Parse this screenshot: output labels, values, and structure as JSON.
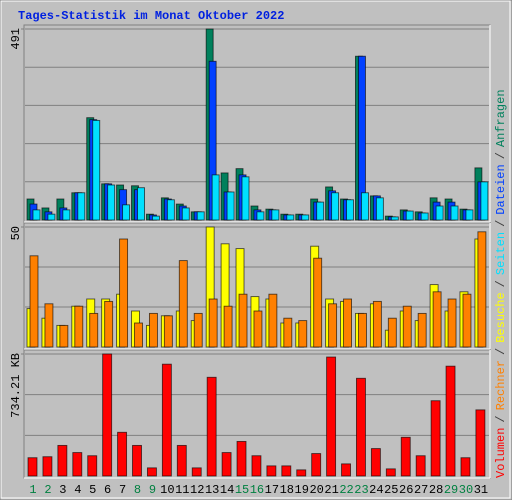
{
  "title": "Tages-Statistik im Monat Oktober 2022",
  "legend_separator": "/",
  "chart_data": [
    {
      "type": "bar",
      "ylim": [
        0,
        491
      ],
      "yticks": [
        491
      ],
      "series": [
        {
          "name": "Anfragen",
          "color": "#00805c",
          "values": [
            54,
            31,
            54,
            70,
            263,
            93,
            90,
            88,
            15,
            57,
            41,
            21,
            491,
            121,
            132,
            36,
            28,
            15,
            15,
            54,
            85,
            54,
            421,
            62,
            10,
            26,
            21,
            57,
            54,
            28,
            134
          ]
        },
        {
          "name": "Dateien",
          "color": "#0040ff",
          "values": [
            41,
            21,
            31,
            70,
            258,
            93,
            78,
            78,
            13,
            54,
            36,
            21,
            408,
            72,
            116,
            26,
            26,
            13,
            13,
            46,
            75,
            52,
            421,
            62,
            8,
            23,
            18,
            46,
            46,
            26,
            98
          ]
        },
        {
          "name": "Seiten",
          "color": "#00e0ff",
          "values": [
            26,
            15,
            26,
            70,
            256,
            90,
            39,
            83,
            10,
            52,
            31,
            21,
            116,
            72,
            111,
            21,
            26,
            13,
            13,
            46,
            70,
            52,
            70,
            57,
            8,
            23,
            18,
            36,
            36,
            26,
            98
          ]
        }
      ]
    },
    {
      "type": "bar",
      "ylim": [
        0,
        50
      ],
      "yticks": [
        50
      ],
      "series": [
        {
          "name": "Besuche",
          "color": "#ffff00",
          "values": [
            16,
            12,
            9,
            17,
            20,
            20,
            22,
            15,
            9,
            13,
            15,
            11,
            50,
            43,
            41,
            21,
            20,
            10,
            10,
            42,
            20,
            19,
            14,
            18,
            7,
            15,
            11,
            26,
            15,
            23,
            45
          ]
        },
        {
          "name": "Rechner",
          "color": "#ff8000",
          "values": [
            38,
            18,
            9,
            17,
            14,
            19,
            45,
            10,
            14,
            13,
            36,
            14,
            20,
            17,
            22,
            15,
            22,
            12,
            11,
            37,
            18,
            20,
            14,
            19,
            12,
            17,
            14,
            23,
            20,
            22,
            48
          ]
        }
      ]
    },
    {
      "type": "bar",
      "ylim": [
        0,
        734.21
      ],
      "yticks": [
        {
          "value": 734.21,
          "label": "734.21 KB"
        }
      ],
      "categories": [
        1,
        2,
        3,
        4,
        5,
        6,
        7,
        8,
        9,
        10,
        11,
        12,
        13,
        14,
        15,
        16,
        17,
        18,
        19,
        20,
        21,
        22,
        23,
        24,
        25,
        26,
        27,
        28,
        29,
        30,
        31
      ],
      "highlight_categories": [
        1,
        2,
        8,
        9,
        15,
        16,
        22,
        23,
        29,
        30
      ],
      "highlight_color": "#008040",
      "label_color": "#000000",
      "series": [
        {
          "name": "Volumen",
          "color": "#ff0000",
          "values": [
            110,
            116,
            184,
            141,
            122,
            734.21,
            263,
            184,
            49,
            673,
            184,
            49,
            594,
            141,
            208,
            122,
            61,
            61,
            37,
            135,
            716,
            73,
            588,
            165,
            43,
            233,
            122,
            453,
            661,
            110,
            398
          ]
        }
      ]
    }
  ]
}
